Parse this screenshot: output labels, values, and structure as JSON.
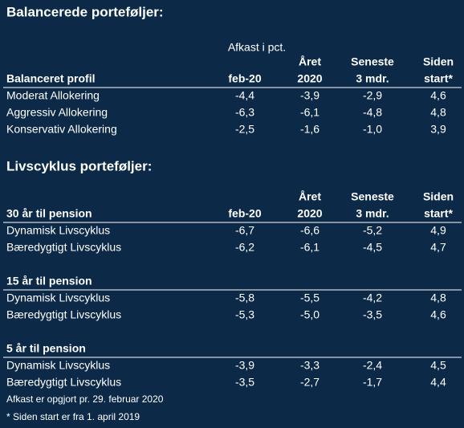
{
  "sections": [
    {
      "title": "Balancerede porteføljer:",
      "note": "Afkast i pct.",
      "columns": [
        [
          "feb-20"
        ],
        [
          "Året",
          "2020"
        ],
        [
          "Seneste",
          "3 mdr."
        ],
        [
          "Siden",
          "start*"
        ]
      ],
      "groups": [
        {
          "heading": "Balanceret profil",
          "rows": [
            {
              "label": "Moderat Allokering",
              "values": [
                "-4,4",
                "-3,9",
                "-2,9",
                "4,6"
              ]
            },
            {
              "label": "Aggressiv Allokering",
              "values": [
                "-6,3",
                "-6,1",
                "-4,8",
                "4,8"
              ]
            },
            {
              "label": "Konservativ Allokering",
              "values": [
                "-2,5",
                "-1,6",
                "-1,0",
                "3,9"
              ]
            }
          ]
        }
      ]
    },
    {
      "title": "Livscyklus porteføljer:",
      "columns": [
        [
          "feb-20"
        ],
        [
          "Året",
          "2020"
        ],
        [
          "Seneste",
          "3 mdr."
        ],
        [
          "Siden",
          "start*"
        ]
      ],
      "groups": [
        {
          "heading": "30 år til pension",
          "rows": [
            {
              "label": "Dynamisk Livscyklus",
              "values": [
                "-6,7",
                "-6,6",
                "-5,2",
                "4,9"
              ]
            },
            {
              "label": "Bæredygtigt Livscyklus",
              "values": [
                "-6,2",
                "-6,1",
                "-4,5",
                "4,7"
              ]
            }
          ]
        },
        {
          "heading": "15 år til pension",
          "rows": [
            {
              "label": "Dynamisk Livscyklus",
              "values": [
                "-5,8",
                "-5,5",
                "-4,2",
                "4,8"
              ]
            },
            {
              "label": "Bæredygtigt Livscyklus",
              "values": [
                "-5,3",
                "-5,0",
                "-3,5",
                "4,6"
              ]
            }
          ]
        },
        {
          "heading": "5 år til pension",
          "rows": [
            {
              "label": "Dynamisk Livscyklus",
              "values": [
                "-3,9",
                "-3,3",
                "-2,4",
                "4,5"
              ]
            },
            {
              "label": "Bæredygtigt Livscyklus",
              "values": [
                "-3,5",
                "-2,7",
                "-1,7",
                "4,4"
              ]
            }
          ]
        }
      ]
    }
  ],
  "footnotes": [
    "Afkast er opgjort pr. 29. februar 2020",
    "* Siden start er fra 1. april 2019"
  ]
}
